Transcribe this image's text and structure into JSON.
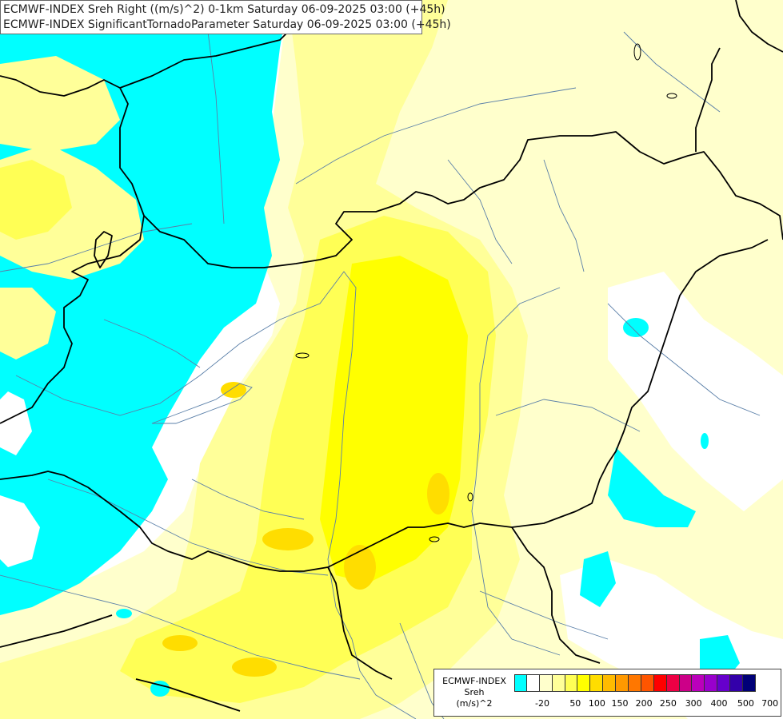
{
  "header": {
    "line1": "ECMWF-INDEX Sreh Right ((m/s)^2) 0-1km Saturday 06-09-2025 03:00 (+45h)",
    "line2": "ECMWF-INDEX SignificantTornadoParameter Saturday 06-09-2025 03:00 (+45h)"
  },
  "legend": {
    "title_line1": "ECMWF-INDEX",
    "title_line2": "Sreh",
    "title_line3": "(m/s)^2",
    "colors": [
      "#00ffff",
      "#ffffff",
      "#ffffcc",
      "#ffff99",
      "#ffff55",
      "#ffff00",
      "#ffdd00",
      "#ffbb00",
      "#ff9900",
      "#ff7700",
      "#ff5500",
      "#ff0000",
      "#ee0044",
      "#cc0088",
      "#bb00bb",
      "#9900cc",
      "#6600cc",
      "#3300aa",
      "#000077"
    ],
    "labels": [
      "-20",
      "50",
      "100",
      "150",
      "200",
      "250",
      "300",
      "400",
      "500",
      "700"
    ]
  },
  "colors": {
    "cyan": "#00ffff",
    "pale_yellow": "#ffffcc",
    "light_yellow": "#ffff99",
    "yellow": "#ffff55",
    "bright_yellow": "#ffff00",
    "gold": "#ffdd00",
    "border": "#000000",
    "river": "#5a7fa8"
  }
}
